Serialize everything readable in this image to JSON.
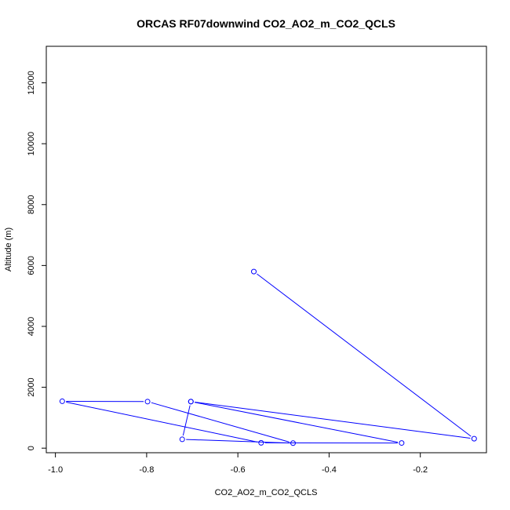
{
  "chart_data": {
    "type": "line",
    "title": "ORCAS RF07downwind CO2_AO2_m_CO2_QCLS",
    "xlabel": "CO2_AO2_m_CO2_QCLS",
    "ylabel": "Altitude (m)",
    "xlim": [
      -1.02,
      -0.055
    ],
    "ylim": [
      -150,
      13200
    ],
    "xticks": [
      -1.0,
      -0.8,
      -0.6,
      -0.4,
      -0.2
    ],
    "xtick_labels": [
      "-1.0",
      "-0.8",
      "-0.6",
      "-0.4",
      "-0.2"
    ],
    "yticks": [
      0,
      2000,
      4000,
      6000,
      8000,
      10000,
      12000
    ],
    "ytick_labels": [
      "0",
      "2000",
      "4000",
      "6000",
      "8000",
      "10000",
      "12000"
    ],
    "grid": false,
    "series": [
      {
        "color": "#0000ff",
        "marker": "open-circle",
        "x": [
          -0.565,
          -0.082,
          -0.703,
          -0.241,
          -0.549,
          -0.985,
          -0.798,
          -0.479,
          -0.722,
          -0.703
        ],
        "y": [
          5800,
          310,
          1530,
          170,
          175,
          1540,
          1530,
          165,
          290,
          1530
        ]
      }
    ]
  }
}
